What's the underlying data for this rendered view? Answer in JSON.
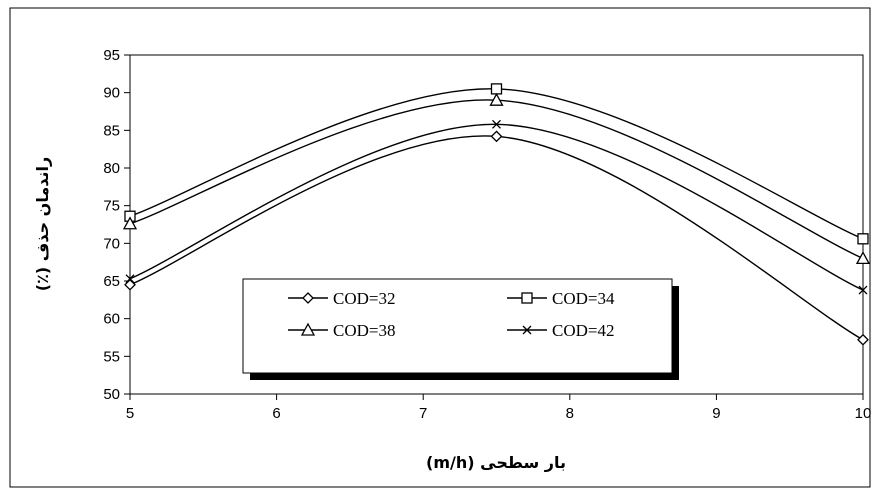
{
  "chart_data": {
    "type": "line",
    "title": "",
    "xlabel": "بار سطحی (m/h)",
    "ylabel": "راندمان حذف (٪)",
    "xlim": [
      5,
      10
    ],
    "ylim": [
      50,
      95
    ],
    "x_ticks": [
      "5",
      "6",
      "7",
      "8",
      "9",
      "10"
    ],
    "y_ticks": [
      "50",
      "55",
      "60",
      "65",
      "70",
      "75",
      "80",
      "85",
      "90",
      "95"
    ],
    "grid": false,
    "legend_position": "center-left",
    "x": [
      5,
      7.5,
      10
    ],
    "series": [
      {
        "name": "COD=32",
        "marker": "diamond",
        "values": [
          64.5,
          84.2,
          57.2
        ]
      },
      {
        "name": "COD=34",
        "marker": "square",
        "values": [
          73.6,
          90.5,
          70.6
        ]
      },
      {
        "name": "COD=38",
        "marker": "triangle",
        "values": [
          72.6,
          89.0,
          68.0
        ]
      },
      {
        "name": "COD=42",
        "marker": "x",
        "values": [
          65.3,
          85.8,
          63.8
        ]
      }
    ]
  }
}
